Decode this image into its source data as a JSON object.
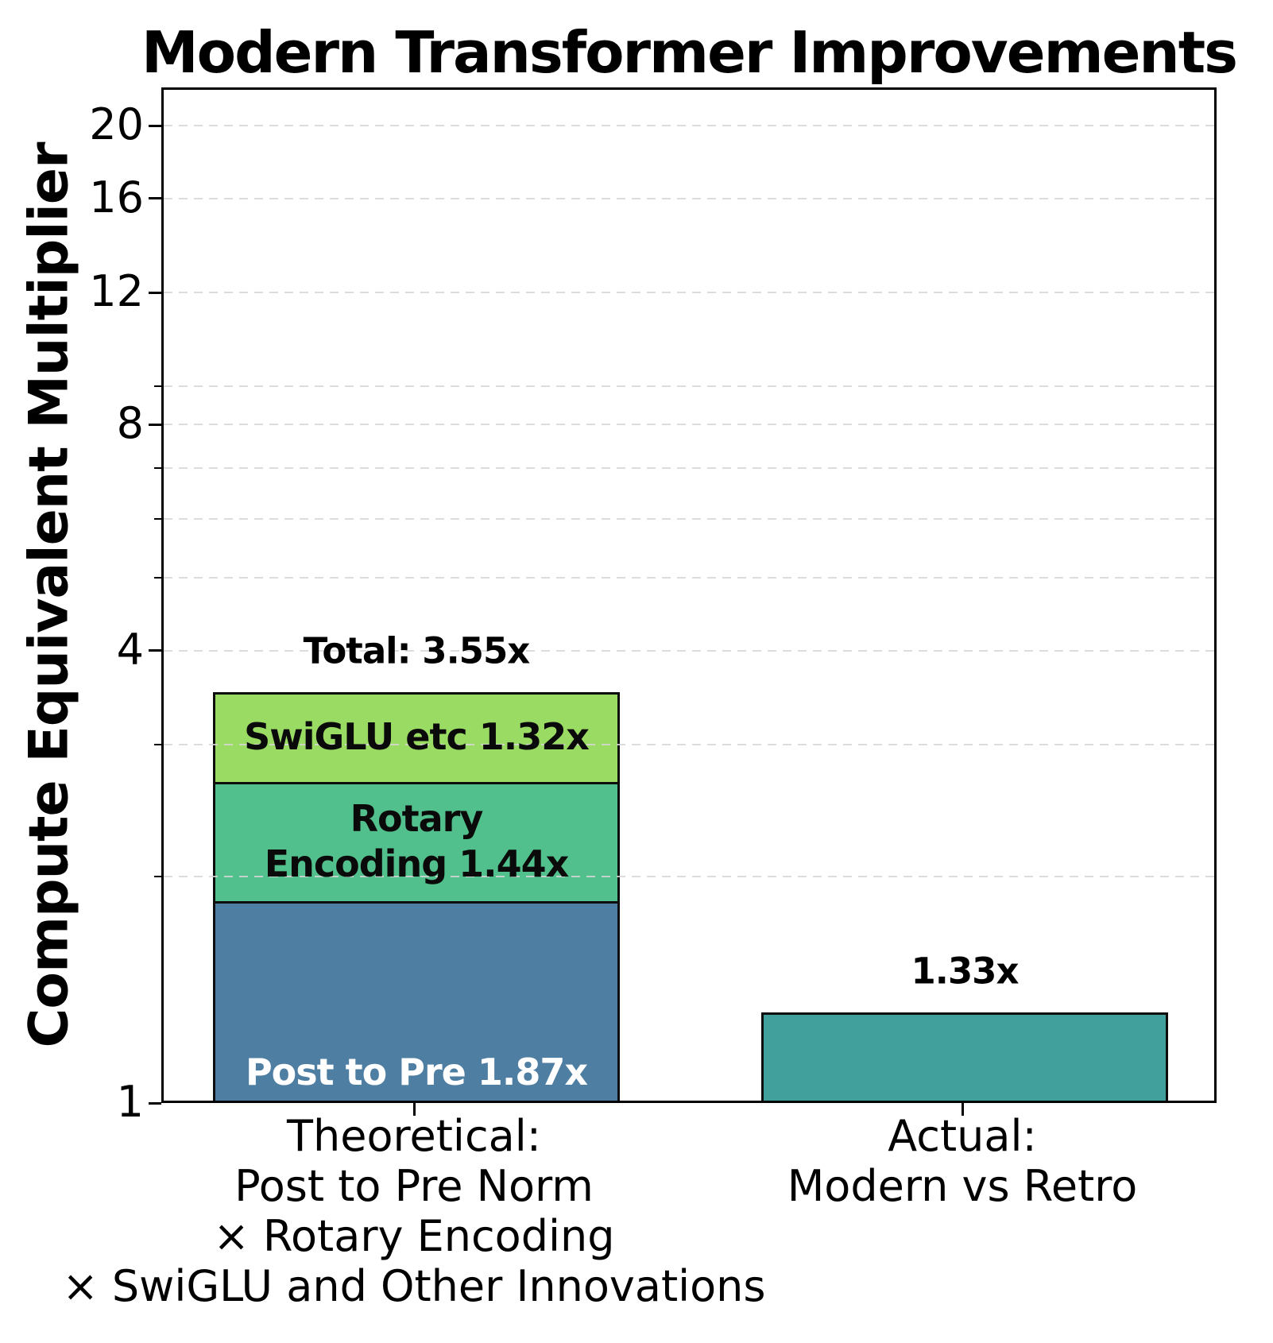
{
  "title": "Modern Transformer Improvements",
  "y_axis": {
    "label": "Compute Equivalent Multiplier",
    "major_ticks": [
      {
        "value": 20,
        "label": "20"
      },
      {
        "value": 16,
        "label": "16"
      },
      {
        "value": 12,
        "label": "12"
      },
      {
        "value": 8,
        "label": "8"
      },
      {
        "value": 4,
        "label": "4"
      },
      {
        "value": 1,
        "label": "1"
      }
    ],
    "minor_tick_values": [
      9,
      7,
      6,
      5,
      3,
      2
    ]
  },
  "chart_data": {
    "type": "bar",
    "title": "Modern Transformer Improvements",
    "ylabel": "Compute Equivalent Multiplier",
    "yscale": "log",
    "ylim": [
      1,
      22.5
    ],
    "grid": true,
    "grid_style": "dashed",
    "bars": [
      {
        "id": "theoretical",
        "category_lines": [
          "Theoretical:",
          "Post to Pre Norm",
          "× Rotary Encoding",
          "× SwiGLU and Other Innovations"
        ],
        "stacked": true,
        "total": 3.55,
        "total_label": "Total: 3.55x",
        "segments": [
          {
            "name": "post-to-pre",
            "multiplier": 1.87,
            "label": "Post to Pre 1.87x",
            "label_lines": null,
            "color": "#4F7EA3",
            "label_color": "#ffffff"
          },
          {
            "name": "rotary-encoding",
            "multiplier": 1.44,
            "label": "Rotary Encoding 1.44x",
            "label_lines": [
              "Rotary",
              "Encoding 1.44x"
            ],
            "color": "#52C08D",
            "label_color": "#0a0a0a"
          },
          {
            "name": "swiglu-etc",
            "multiplier": 1.32,
            "label": "SwiGLU etc 1.32x",
            "label_lines": null,
            "color": "#9ADB63",
            "label_color": "#0a0a0a"
          }
        ]
      },
      {
        "id": "actual",
        "category_lines": [
          "Actual:",
          "Modern vs Retro"
        ],
        "stacked": false,
        "value": 1.33,
        "value_label": "1.33x",
        "color": "#42A09C"
      }
    ],
    "colors": {
      "bar_edge": "#0d0d0d",
      "grid": "#d6d6d6",
      "text": "#000000",
      "post_to_pre": "#4F7EA3",
      "rotary_encoding": "#52C08D",
      "swiglu_etc": "#9ADB63",
      "actual": "#42A09C"
    }
  }
}
